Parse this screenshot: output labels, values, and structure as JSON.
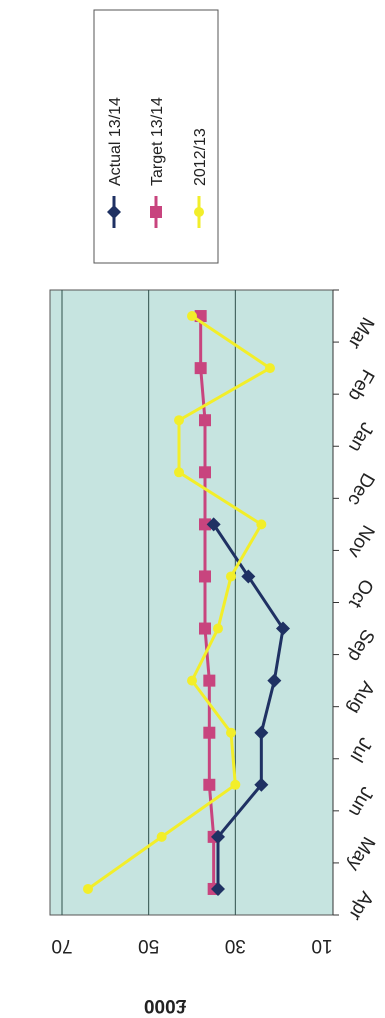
{
  "chart_data": {
    "type": "line",
    "orientation": "rotated-90-clockwise",
    "categories": [
      "Apr",
      "May",
      "Jun",
      "Jul",
      "Aug",
      "Sep",
      "Oct",
      "Nov",
      "Dec",
      "Jan",
      "Feb",
      "Mar"
    ],
    "ylabel": "£000",
    "ylim": [
      10,
      80
    ],
    "yticks": [
      10,
      30,
      50,
      70
    ],
    "grid": true,
    "plot_background": "#c6e4e0",
    "gridline_color": "#2f4f4a",
    "legend_position": "top-right",
    "series": [
      {
        "name": "Actual 13/14",
        "color": "#1f3163",
        "marker": "diamond",
        "values": [
          34,
          34,
          24,
          24,
          21,
          19,
          27,
          35,
          null,
          null,
          null,
          null
        ]
      },
      {
        "name": "Target 13/14",
        "color": "#c8447e",
        "marker": "square",
        "values": [
          35,
          35,
          36,
          36,
          36,
          37,
          37,
          37,
          37,
          37,
          38,
          38
        ]
      },
      {
        "name": "2012/13",
        "color": "#f2ee2a",
        "marker": "circle",
        "values": [
          64,
          47,
          30,
          31,
          40,
          34,
          31,
          24,
          43,
          43,
          22,
          40
        ]
      }
    ]
  }
}
